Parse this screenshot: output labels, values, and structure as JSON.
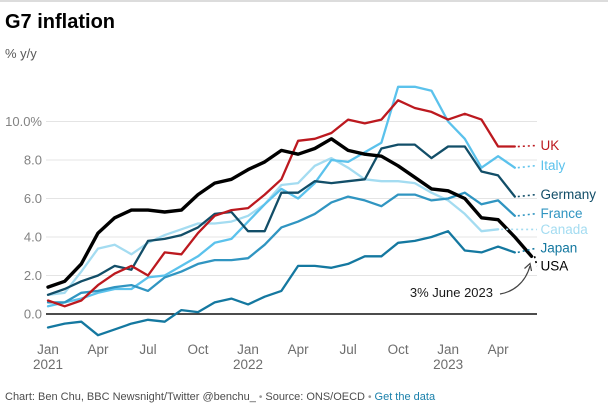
{
  "title": "G7 inflation",
  "subtitle": "% y/y",
  "annotation": {
    "text": "3% June 2023"
  },
  "footer": {
    "credit": "Chart: Ben Chu, BBC Newsnight/Twitter @benchu_",
    "separator": "•",
    "source": "Source: ONS/OECD",
    "link_label": "Get the data"
  },
  "colors": {
    "grid": "#e4e4e4",
    "zero_line": "#111111",
    "tick_label": "#828282",
    "annotation_text": "#1a1a1a",
    "annotation_arrow": "#444444",
    "link_blue": "#1a80ab"
  },
  "chart_data": {
    "type": "line",
    "title": "G7 inflation",
    "ylabel": "% y/y",
    "grid": "horizontal",
    "legend_position": "right-inline-labels",
    "ylim": [
      -1.6,
      12.2
    ],
    "categories": [
      "Jan 2021",
      "Feb 2021",
      "Mar 2021",
      "Apr 2021",
      "May 2021",
      "Jun 2021",
      "Jul 2021",
      "Aug 2021",
      "Sep 2021",
      "Oct 2021",
      "Nov 2021",
      "Dec 2021",
      "Jan 2022",
      "Feb 2022",
      "Mar 2022",
      "Apr 2022",
      "May 2022",
      "Jun 2022",
      "Jul 2022",
      "Aug 2022",
      "Sep 2022",
      "Oct 2022",
      "Nov 2022",
      "Dec 2022",
      "Jan 2023",
      "Feb 2023",
      "Mar 2023",
      "Apr 2023",
      "May 2023",
      "Jun 2023"
    ],
    "y_ticks": [
      {
        "value": 0,
        "label": "0.0"
      },
      {
        "value": 2,
        "label": "2.0"
      },
      {
        "value": 4,
        "label": "4.0"
      },
      {
        "value": 6,
        "label": "6.0"
      },
      {
        "value": 8,
        "label": "8.0"
      },
      {
        "value": 10,
        "label": "10.0%"
      }
    ],
    "x_ticks": [
      {
        "month_index": 0,
        "label": "Jan",
        "year": "2021"
      },
      {
        "month_index": 3,
        "label": "Apr"
      },
      {
        "month_index": 6,
        "label": "Jul"
      },
      {
        "month_index": 9,
        "label": "Oct"
      },
      {
        "month_index": 12,
        "label": "Jan",
        "year": "2022"
      },
      {
        "month_index": 15,
        "label": "Apr"
      },
      {
        "month_index": 18,
        "label": "Jul"
      },
      {
        "month_index": 21,
        "label": "Oct"
      },
      {
        "month_index": 24,
        "label": "Jan",
        "year": "2023"
      },
      {
        "month_index": 27,
        "label": "Apr"
      }
    ],
    "series": [
      {
        "name": "UK",
        "color": "#bc191f",
        "z": 6,
        "values": [
          0.7,
          0.4,
          0.7,
          1.5,
          2.1,
          2.5,
          2.0,
          3.2,
          3.1,
          4.2,
          5.1,
          5.4,
          5.5,
          6.2,
          7.0,
          9.0,
          9.1,
          9.4,
          10.1,
          9.9,
          10.1,
          11.1,
          10.7,
          10.5,
          10.1,
          10.4,
          10.1,
          8.7,
          8.7
        ]
      },
      {
        "name": "Italy",
        "color": "#5bc2ec",
        "z": 2,
        "values": [
          0.4,
          0.6,
          0.8,
          1.1,
          1.3,
          1.3,
          1.9,
          2.0,
          2.5,
          3.0,
          3.7,
          3.9,
          4.8,
          5.7,
          6.5,
          6.0,
          6.8,
          8.0,
          7.9,
          8.4,
          8.9,
          11.8,
          11.8,
          11.6,
          10.0,
          9.1,
          7.6,
          8.2,
          7.6
        ]
      },
      {
        "name": "Germany",
        "color": "#124e68",
        "z": 5,
        "values": [
          1.0,
          1.3,
          1.7,
          2.0,
          2.5,
          2.3,
          3.8,
          3.9,
          4.1,
          4.5,
          5.2,
          5.3,
          4.3,
          4.3,
          6.3,
          6.3,
          6.9,
          6.8,
          6.9,
          7.0,
          8.6,
          8.8,
          8.8,
          8.1,
          8.7,
          8.7,
          7.4,
          7.2,
          6.1
        ]
      },
      {
        "name": "France",
        "color": "#3095c1",
        "z": 3,
        "values": [
          0.6,
          0.6,
          1.1,
          1.2,
          1.4,
          1.5,
          1.2,
          1.9,
          2.2,
          2.6,
          2.8,
          2.8,
          2.9,
          3.6,
          4.5,
          4.8,
          5.2,
          5.8,
          6.1,
          5.9,
          5.6,
          6.2,
          6.2,
          5.9,
          6.0,
          6.3,
          5.7,
          5.9,
          5.1
        ]
      },
      {
        "name": "Canada",
        "color": "#a4dcf1",
        "z": 1,
        "values": [
          1.0,
          1.1,
          2.2,
          3.4,
          3.6,
          3.1,
          3.7,
          4.1,
          4.4,
          4.7,
          4.7,
          4.8,
          5.1,
          5.7,
          6.7,
          6.8,
          7.7,
          8.1,
          7.6,
          7.0,
          6.9,
          6.9,
          6.8,
          6.3,
          5.9,
          5.2,
          4.3,
          4.4
        ]
      },
      {
        "name": "Japan",
        "color": "#1478a0",
        "z": 4,
        "values": [
          -0.7,
          -0.5,
          -0.4,
          -1.1,
          -0.8,
          -0.5,
          -0.3,
          -0.4,
          0.2,
          0.1,
          0.6,
          0.8,
          0.5,
          0.9,
          1.2,
          2.5,
          2.5,
          2.4,
          2.6,
          3.0,
          3.0,
          3.7,
          3.8,
          4.0,
          4.3,
          3.3,
          3.2,
          3.5,
          3.2
        ]
      },
      {
        "name": "USA",
        "color": "#000000",
        "z": 7,
        "values": [
          1.4,
          1.7,
          2.6,
          4.2,
          5.0,
          5.4,
          5.4,
          5.3,
          5.4,
          6.2,
          6.8,
          7.0,
          7.5,
          7.9,
          8.5,
          8.3,
          8.6,
          9.1,
          8.5,
          8.3,
          8.2,
          7.7,
          7.1,
          6.5,
          6.4,
          6.0,
          5.0,
          4.9,
          4.0,
          3.0
        ]
      }
    ]
  }
}
